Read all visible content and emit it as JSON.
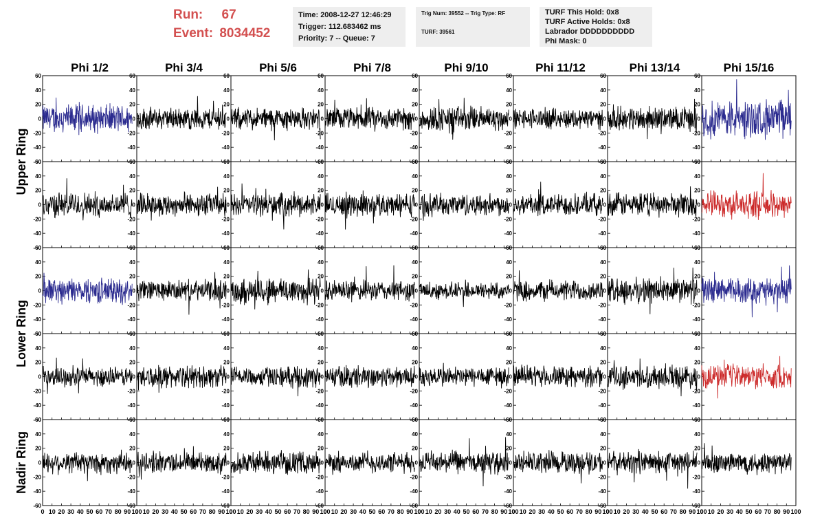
{
  "header": {
    "run_label": "Run:",
    "run_value": "67",
    "event_label": "Event:",
    "event_value": "8034452",
    "time_box": {
      "time": "Time: 2008-12-27 12:46:29",
      "trigger": "Trigger: 112.683462 ms",
      "priority": "Priority: 7 -- Queue: 7"
    },
    "trig_box": {
      "trig": "Trig Num: 39552 -- Trig Type: RF",
      "turf": "TURF: 39561"
    },
    "turf_box": {
      "hold": "TURF This Hold: 0x8",
      "active": "TURF Active Holds: 0x8",
      "labrador": "Labrador DDDDDDDDDD",
      "phimask": "Phi Mask: 0"
    }
  },
  "chart_data": {
    "type": "line",
    "columns": [
      "Phi 1/2",
      "Phi 3/4",
      "Phi 5/6",
      "Phi 7/8",
      "Phi 9/10",
      "Phi 11/12",
      "Phi 13/14",
      "Phi 15/16"
    ],
    "row_labels": [
      "Upper Ring",
      "Lower Ring",
      "Nadir Ring"
    ],
    "rows": 5,
    "ylim": [
      -60,
      60
    ],
    "yticks": [
      "-60",
      "-40",
      "-20",
      "0",
      "20",
      "40",
      "60"
    ],
    "xlim": [
      0,
      100
    ],
    "xticks": [
      "0",
      "10",
      "20",
      "30",
      "40",
      "50",
      "60",
      "70",
      "80",
      "90",
      "100"
    ],
    "series_colors": {
      "normal": "#000000",
      "blue": "#2b2b8f",
      "red": "#cc2a2a"
    },
    "panel_colors": [
      [
        "blue",
        "normal",
        "normal",
        "normal",
        "normal",
        "normal",
        "normal",
        "blue"
      ],
      [
        "normal",
        "normal",
        "normal",
        "normal",
        "normal",
        "normal",
        "normal",
        "red"
      ],
      [
        "blue",
        "normal",
        "normal",
        "normal",
        "normal",
        "normal",
        "normal",
        "blue"
      ],
      [
        "normal",
        "normal",
        "normal",
        "normal",
        "normal",
        "normal",
        "normal",
        "red"
      ],
      [
        "normal",
        "normal",
        "normal",
        "normal",
        "normal",
        "normal",
        "normal",
        "normal"
      ]
    ],
    "panel_amplitudes": [
      [
        18,
        14,
        14,
        14,
        16,
        13,
        15,
        24
      ],
      [
        16,
        14,
        14,
        15,
        14,
        14,
        15,
        17
      ],
      [
        16,
        13,
        17,
        13,
        11,
        13,
        16,
        16
      ],
      [
        12,
        14,
        13,
        14,
        13,
        13,
        14,
        15
      ],
      [
        14,
        13,
        14,
        13,
        14,
        14,
        14,
        14
      ]
    ],
    "samples_per_trace": 260
  }
}
